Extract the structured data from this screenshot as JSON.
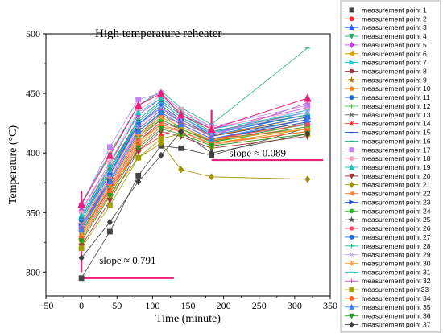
{
  "chart_data": {
    "type": "line",
    "title": "High temperature reheater",
    "xlabel": "Time (minute)",
    "ylabel": "Temperature (°C)",
    "xlim": [
      -50,
      350
    ],
    "ylim": [
      280,
      500
    ],
    "xticks": [
      "−50",
      "0",
      "50",
      "100",
      "150",
      "200",
      "250",
      "300",
      "350"
    ],
    "xtick_values": [
      -50,
      0,
      50,
      100,
      150,
      200,
      250,
      300,
      350
    ],
    "yticks": [
      "300",
      "350",
      "400",
      "450",
      "500"
    ],
    "ytick_values": [
      300,
      350,
      400,
      450,
      500
    ],
    "x": [
      0,
      40,
      80,
      112,
      140,
      183,
      318
    ],
    "grid": false,
    "legend_position": "right-outside",
    "series": [
      {
        "name": "measurement point 1",
        "color": "#444444",
        "marker": "square",
        "values": [
          295,
          334,
          381,
          406,
          404,
          398,
          421
        ]
      },
      {
        "name": "measurement point 2",
        "color": "#ff3030",
        "marker": "circle",
        "values": [
          334,
          370,
          402,
          414,
          424,
          412,
          420
        ]
      },
      {
        "name": "measurement point 3",
        "color": "#2860ff",
        "marker": "triangle-up",
        "values": [
          346,
          384,
          424,
          438,
          426,
          414,
          428
        ]
      },
      {
        "name": "measurement point 4",
        "color": "#20b060",
        "marker": "triangle-down",
        "values": [
          340,
          376,
          418,
          433,
          420,
          409,
          425
        ]
      },
      {
        "name": "measurement point 5",
        "color": "#c040e0",
        "marker": "diamond",
        "values": [
          352,
          392,
          432,
          446,
          434,
          420,
          438
        ]
      },
      {
        "name": "measurement point 6",
        "color": "#d8a000",
        "marker": "triangle-left",
        "values": [
          328,
          366,
          408,
          424,
          418,
          408,
          420
        ]
      },
      {
        "name": "measurement point 7",
        "color": "#20c8d8",
        "marker": "triangle-right",
        "values": [
          338,
          378,
          420,
          436,
          426,
          415,
          430
        ]
      },
      {
        "name": "measurement point 8",
        "color": "#9a3a3a",
        "marker": "hexagon",
        "values": [
          330,
          368,
          410,
          426,
          420,
          410,
          424
        ]
      },
      {
        "name": "measurement point 9",
        "color": "#a08000",
        "marker": "star",
        "values": [
          334,
          372,
          414,
          430,
          422,
          411,
          426
        ]
      },
      {
        "name": "measurement point 10",
        "color": "#ff8000",
        "marker": "pentagon",
        "values": [
          342,
          380,
          424,
          440,
          428,
          414,
          430
        ]
      },
      {
        "name": "measurement point 11",
        "color": "#1e6ae0",
        "marker": "circle-half",
        "values": [
          344,
          382,
          426,
          442,
          430,
          416,
          432
        ]
      },
      {
        "name": "measurement point 12",
        "color": "#40c040",
        "marker": "plus",
        "values": [
          336,
          374,
          416,
          430,
          422,
          410,
          424
        ]
      },
      {
        "name": "measurement point 13",
        "color": "#606060",
        "marker": "x",
        "values": [
          348,
          388,
          428,
          444,
          432,
          418,
          434
        ]
      },
      {
        "name": "measurement point 14",
        "color": "#ff3030",
        "marker": "asterisk",
        "values": [
          332,
          370,
          412,
          428,
          420,
          410,
          422
        ]
      },
      {
        "name": "measurement point 15",
        "color": "#2050c0",
        "marker": "line",
        "values": [
          346,
          386,
          426,
          442,
          430,
          417,
          432
        ]
      },
      {
        "name": "measurement point 16",
        "color": "#20b080",
        "marker": "line",
        "values": [
          358,
          400,
          440,
          452,
          438,
          424,
          488
        ]
      },
      {
        "name": "measurement point 17",
        "color": "#c080ff",
        "marker": "square",
        "values": [
          356,
          405,
          445,
          450,
          436,
          422,
          440
        ]
      },
      {
        "name": "measurement point 18",
        "color": "#ffa0c0",
        "marker": "circle",
        "values": [
          350,
          392,
          436,
          448,
          436,
          421,
          436
        ]
      },
      {
        "name": "measurement point 19",
        "color": "#20c0c0",
        "marker": "triangle-up",
        "values": [
          348,
          390,
          434,
          446,
          434,
          420,
          434
        ]
      },
      {
        "name": "measurement point 20",
        "color": "#a03030",
        "marker": "triangle-down",
        "values": [
          322,
          360,
          402,
          418,
          414,
          404,
          414
        ]
      },
      {
        "name": "measurement point 21",
        "color": "#a09000",
        "marker": "diamond",
        "values": [
          326,
          364,
          396,
          408,
          386,
          380,
          378
        ]
      },
      {
        "name": "measurement point 22",
        "color": "#ff8040",
        "marker": "triangle-left",
        "values": [
          330,
          368,
          410,
          424,
          418,
          407,
          418
        ]
      },
      {
        "name": "measurement point 23",
        "color": "#2050d0",
        "marker": "triangle-right",
        "values": [
          338,
          376,
          418,
          434,
          424,
          412,
          426
        ]
      },
      {
        "name": "measurement point 24",
        "color": "#20c020",
        "marker": "hexagon",
        "values": [
          334,
          372,
          414,
          428,
          420,
          409,
          422
        ]
      },
      {
        "name": "measurement point 25",
        "color": "#505050",
        "marker": "star",
        "values": [
          340,
          378,
          420,
          436,
          426,
          414,
          428
        ]
      },
      {
        "name": "measurement point 26",
        "color": "#ff4060",
        "marker": "pentagon",
        "values": [
          336,
          374,
          416,
          432,
          424,
          412,
          424
        ]
      },
      {
        "name": "measurement point 27",
        "color": "#2070e0",
        "marker": "circle-half",
        "values": [
          344,
          382,
          424,
          440,
          428,
          415,
          430
        ]
      },
      {
        "name": "measurement point 28",
        "color": "#20b090",
        "marker": "plus",
        "values": [
          346,
          386,
          428,
          444,
          432,
          418,
          432
        ]
      },
      {
        "name": "measurement point 29",
        "color": "#c0a0ff",
        "marker": "x",
        "values": [
          340,
          380,
          422,
          438,
          428,
          416,
          434
        ]
      },
      {
        "name": "measurement point 30",
        "color": "#ffa040",
        "marker": "asterisk",
        "values": [
          332,
          372,
          414,
          430,
          422,
          411,
          420
        ]
      },
      {
        "name": "measurement point 31",
        "color": "#40c0e0",
        "marker": "line",
        "values": [
          344,
          384,
          426,
          442,
          430,
          417,
          436
        ]
      },
      {
        "name": "measurement point 32",
        "color": "#d060c0",
        "marker": "plus",
        "values": [
          338,
          378,
          420,
          436,
          426,
          414,
          442
        ]
      },
      {
        "name": "measurement point33",
        "color": "#a0a000",
        "marker": "square",
        "values": [
          320,
          356,
          396,
          412,
          416,
          406,
          416
        ]
      },
      {
        "name": "measurement point 34",
        "color": "#ff6020",
        "marker": "circle",
        "values": [
          328,
          366,
          406,
          422,
          418,
          408,
          418
        ]
      },
      {
        "name": "measurement point 35",
        "color": "#3080ff",
        "marker": "triangle-up",
        "values": [
          336,
          376,
          418,
          434,
          424,
          412,
          428
        ]
      },
      {
        "name": "measurement point 36",
        "color": "#20a020",
        "marker": "triangle-down",
        "values": [
          326,
          364,
          404,
          420,
          416,
          406,
          416
        ]
      },
      {
        "name": "measurement point 37",
        "color": "#404040",
        "marker": "diamond",
        "values": [
          312,
          342,
          376,
          398,
          418,
          400,
          416
        ]
      }
    ],
    "accent_series": {
      "color": "#f0207a",
      "marker": "triangle-up",
      "values": [
        357,
        398,
        440,
        450,
        432,
        420,
        446
      ]
    },
    "slope_lines": [
      {
        "label": "slope ≈ 0.791",
        "x": [
          0,
          130
        ],
        "y": 295,
        "label_x": 10,
        "label_y": 307
      },
      {
        "label": "slope ≈ 0.089",
        "x": [
          183,
          340
        ],
        "y": 394,
        "label_x": 193,
        "label_y": 397
      }
    ]
  }
}
